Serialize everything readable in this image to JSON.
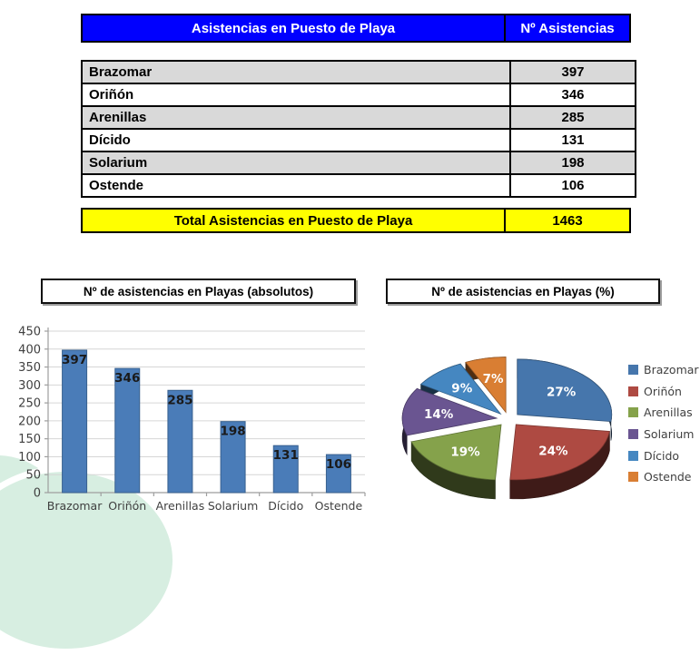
{
  "table": {
    "header": {
      "title": "Asistencias en Puesto de Playa",
      "value_label": "Nº Asistencias"
    },
    "rows": [
      {
        "name": "Brazomar",
        "value": "397"
      },
      {
        "name": "Oriñón",
        "value": "346"
      },
      {
        "name": "Arenillas",
        "value": "285"
      },
      {
        "name": "Dícido",
        "value": "131"
      },
      {
        "name": "Solarium",
        "value": "198"
      },
      {
        "name": "Ostende",
        "value": "106"
      }
    ],
    "total": {
      "label": "Total Asistencias en Puesto de Playa",
      "value": "1463"
    }
  },
  "chart_data": [
    {
      "type": "bar",
      "title": "Nº de asistencias en Playas (absolutos)",
      "categories": [
        "Brazomar",
        "Oriñón",
        "Arenillas",
        "Solarium",
        "Dícido",
        "Ostende"
      ],
      "values": [
        397,
        346,
        285,
        198,
        131,
        106
      ],
      "data_labels": [
        "397",
        "346",
        "285",
        "198",
        "131",
        "106"
      ],
      "ylim": [
        0,
        450
      ],
      "ytick_step": 50,
      "grid": true,
      "legend_position": "none",
      "bar_color": "#4A7CB8",
      "bar_edge_color": "#39618F",
      "gridline_color": "#d6d6d6",
      "axis_color": "#9e9e9e",
      "tick_label_color": "#3f3f3f"
    },
    {
      "type": "pie",
      "title": "Nº de asistencias en Playas (%)",
      "labels": [
        "Brazomar",
        "Oriñón",
        "Arenillas",
        "Solarium",
        "Dícido",
        "Ostende"
      ],
      "values_pct": [
        27,
        24,
        19,
        14,
        9,
        7
      ],
      "slice_labels": [
        "27%",
        "24%",
        "19%",
        "14%",
        "9%",
        "7%"
      ],
      "colors": [
        "#4676AC",
        "#AE4A42",
        "#85A24B",
        "#6A5591",
        "#4587C1",
        "#D97E33"
      ],
      "legend_position": "right",
      "style": "3d-exploded"
    }
  ],
  "colors": {
    "header_bg": "#0000ff",
    "header_text": "#ffffff",
    "total_bg": "#ffff00",
    "row_alt_bg": "#d9d9d9",
    "decor_mint": "#d7eee1"
  }
}
